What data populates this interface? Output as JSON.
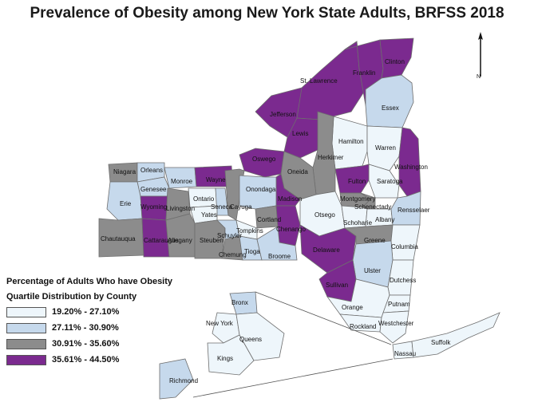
{
  "title": "Prevalence of Obesity among New York State Adults, BRFSS 2018",
  "legend": {
    "title": "Percentage of Adults Who have Obesity",
    "subtitle": "Quartile Distribution by County",
    "classes": [
      {
        "label": "19.20% - 27.10%",
        "color": "#eef6fb"
      },
      {
        "label": "27.11% - 30.90%",
        "color": "#c6d9ec"
      },
      {
        "label": "30.91% - 35.60%",
        "color": "#8c8c8c"
      },
      {
        "label": "35.61% - 44.50%",
        "color": "#7b2a8f"
      }
    ]
  },
  "north_arrow": {
    "label": "N"
  },
  "counties": [
    {
      "name": "St. Lawrence",
      "quartile": 4
    },
    {
      "name": "Franklin",
      "quartile": 4
    },
    {
      "name": "Clinton",
      "quartile": 4
    },
    {
      "name": "Essex",
      "quartile": 2
    },
    {
      "name": "Jefferson",
      "quartile": 4
    },
    {
      "name": "Lewis",
      "quartile": 4
    },
    {
      "name": "Hamilton",
      "quartile": 1
    },
    {
      "name": "Warren",
      "quartile": 1
    },
    {
      "name": "Washington",
      "quartile": 4
    },
    {
      "name": "Herkimer",
      "quartile": 3
    },
    {
      "name": "Oswego",
      "quartile": 4
    },
    {
      "name": "Oneida",
      "quartile": 3
    },
    {
      "name": "Fulton",
      "quartile": 4
    },
    {
      "name": "Saratoga",
      "quartile": 1
    },
    {
      "name": "Niagara",
      "quartile": 3
    },
    {
      "name": "Orleans",
      "quartile": 2
    },
    {
      "name": "Monroe",
      "quartile": 2
    },
    {
      "name": "Wayne",
      "quartile": 4
    },
    {
      "name": "Genesee",
      "quartile": 2
    },
    {
      "name": "Onondaga",
      "quartile": 2
    },
    {
      "name": "Madison",
      "quartile": 4
    },
    {
      "name": "Montgomery",
      "quartile": 3
    },
    {
      "name": "Schenectady",
      "quartile": 3
    },
    {
      "name": "Erie",
      "quartile": 2
    },
    {
      "name": "Wyoming",
      "quartile": 4
    },
    {
      "name": "Livingston",
      "quartile": 3
    },
    {
      "name": "Ontario",
      "quartile": 1
    },
    {
      "name": "Seneca",
      "quartile": 2
    },
    {
      "name": "Cayuga",
      "quartile": 3
    },
    {
      "name": "Yates",
      "quartile": 1
    },
    {
      "name": "Cortland",
      "quartile": 3
    },
    {
      "name": "Chenango",
      "quartile": 4
    },
    {
      "name": "Otsego",
      "quartile": 1
    },
    {
      "name": "Schoharie",
      "quartile": 1
    },
    {
      "name": "Albany",
      "quartile": 1
    },
    {
      "name": "Rensselaer",
      "quartile": 2
    },
    {
      "name": "Chautauqua",
      "quartile": 3
    },
    {
      "name": "Cattaraugus",
      "quartile": 4
    },
    {
      "name": "Allegany",
      "quartile": 3
    },
    {
      "name": "Steuben",
      "quartile": 3
    },
    {
      "name": "Schuyler",
      "quartile": 2
    },
    {
      "name": "Chemung",
      "quartile": 3
    },
    {
      "name": "Tompkins",
      "quartile": 1
    },
    {
      "name": "Tioga",
      "quartile": 2
    },
    {
      "name": "Broome",
      "quartile": 2
    },
    {
      "name": "Delaware",
      "quartile": 4
    },
    {
      "name": "Greene",
      "quartile": 3
    },
    {
      "name": "Columbia",
      "quartile": 1
    },
    {
      "name": "Ulster",
      "quartile": 2
    },
    {
      "name": "Sullivan",
      "quartile": 4
    },
    {
      "name": "Dutchess",
      "quartile": 1
    },
    {
      "name": "Orange",
      "quartile": 1
    },
    {
      "name": "Putnam",
      "quartile": 1
    },
    {
      "name": "Rockland",
      "quartile": 1
    },
    {
      "name": "Westchester",
      "quartile": 1
    },
    {
      "name": "Nassau",
      "quartile": 1
    },
    {
      "name": "Suffolk",
      "quartile": 1
    },
    {
      "name": "Bronx",
      "quartile": 2
    },
    {
      "name": "New York",
      "quartile": 1
    },
    {
      "name": "Queens",
      "quartile": 1
    },
    {
      "name": "Kings",
      "quartile": 1
    },
    {
      "name": "Richmond",
      "quartile": 2
    }
  ]
}
